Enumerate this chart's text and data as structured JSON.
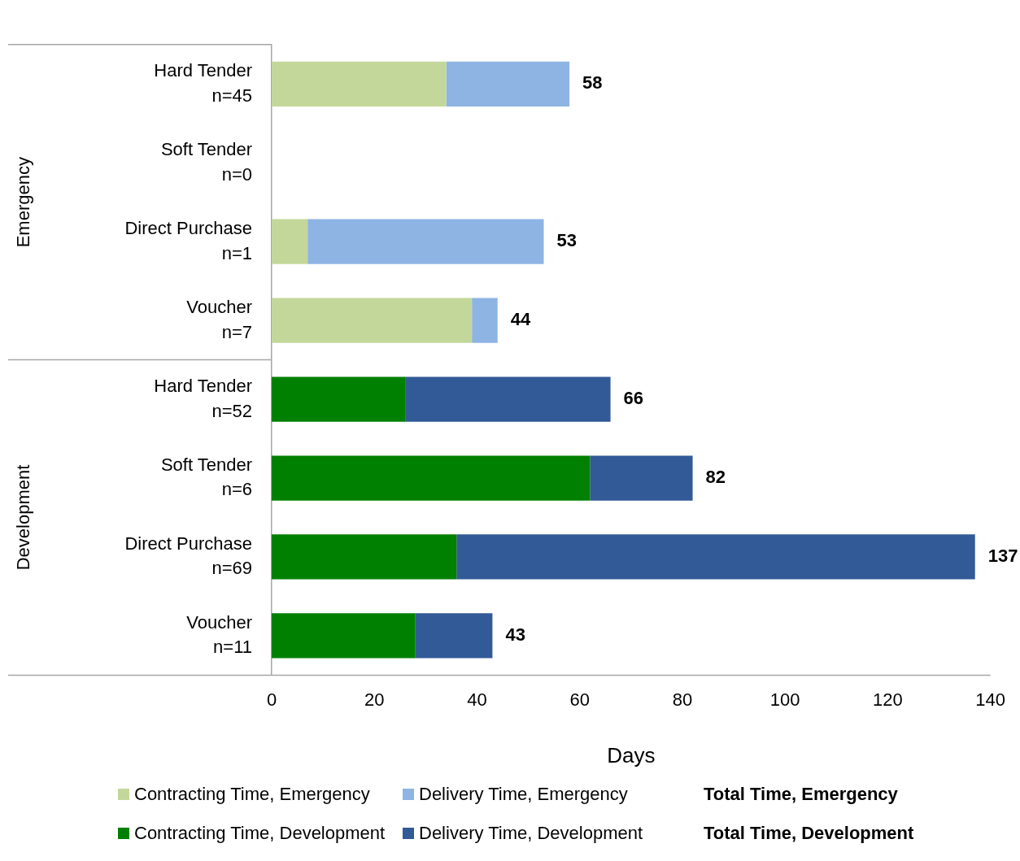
{
  "chart_data": {
    "type": "bar",
    "orientation": "horizontal",
    "stacked": true,
    "categories": [
      "Hard Tender\nn=45",
      "Soft Tender\nn=0",
      "Direct Purchase\nn=1",
      "Voucher\nn=7",
      "Hard Tender\nn=52",
      "Soft Tender\nn=6",
      "Direct Purchase\nn=69",
      "Voucher\nn=11"
    ],
    "series": [
      {
        "name": "Contracting Time, Emergency",
        "color": "#c4d79b",
        "values": [
          34,
          null,
          7,
          39,
          null,
          null,
          null,
          null
        ]
      },
      {
        "name": "Delivery Time, Emergency",
        "color": "#8eb4e3",
        "values": [
          24,
          null,
          46,
          5,
          null,
          null,
          null,
          null
        ]
      },
      {
        "name": "Contracting Time, Development",
        "color": "#008000",
        "values": [
          null,
          null,
          null,
          null,
          26,
          62,
          36,
          28
        ]
      },
      {
        "name": "Delivery Time, Development",
        "color": "#325a97",
        "values": [
          null,
          null,
          null,
          null,
          40,
          20,
          101,
          15
        ]
      }
    ],
    "totals": [
      "58",
      null,
      "53",
      "44",
      "66",
      "82",
      "137",
      "43"
    ],
    "xlim": [
      0,
      140
    ],
    "xticks": [
      0,
      20,
      40,
      60,
      80,
      100,
      120,
      140
    ],
    "xlabel": "Days",
    "grid": false,
    "legend": "bottom",
    "annotations": [
      "Emergency",
      "Development",
      "Total Time, Emergency",
      "Total Time, Development"
    ]
  }
}
